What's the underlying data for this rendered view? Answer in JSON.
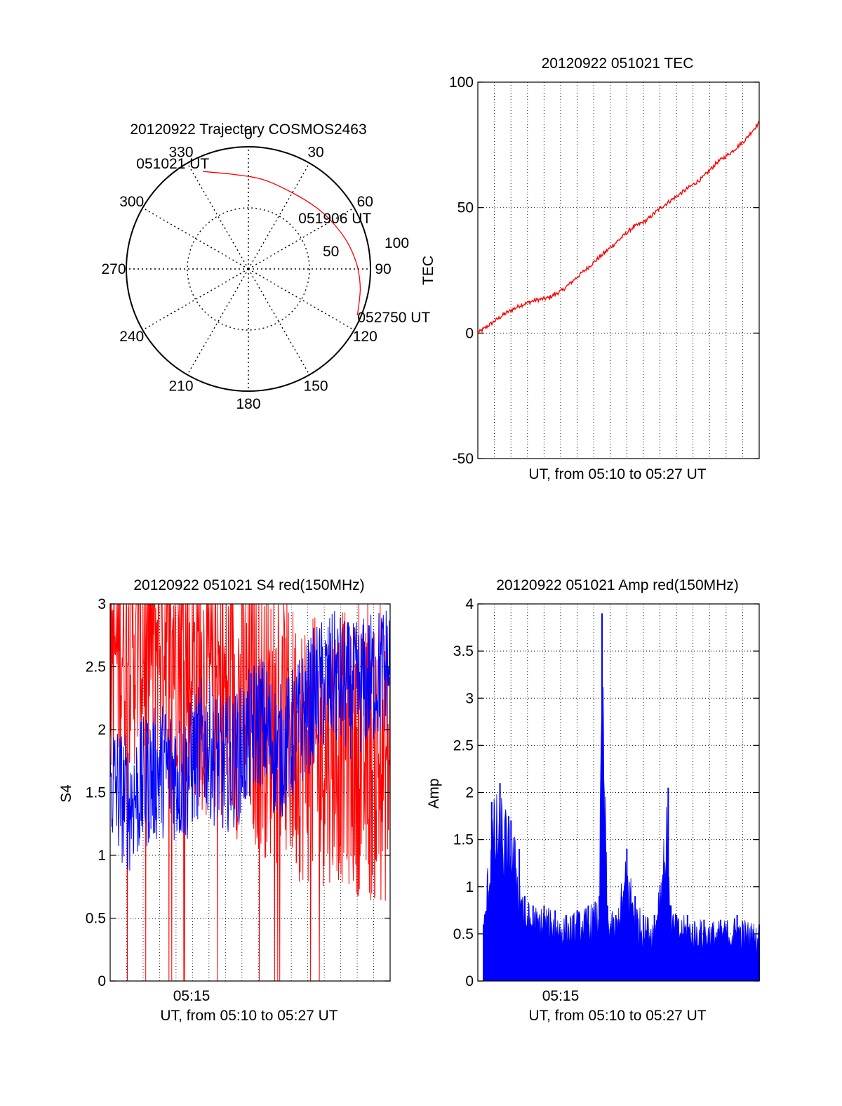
{
  "colors": {
    "red": "#ff0000",
    "blue": "#0000ff",
    "axis": "#000000",
    "grid": "#000000"
  },
  "chart_data": [
    {
      "type": "polar",
      "title": "20120922 Trajectory COSMOS2463",
      "angle_labels": [
        "0",
        "30",
        "60",
        "90",
        "120",
        "150",
        "180",
        "210",
        "240",
        "270",
        "300",
        "330"
      ],
      "radial_labels": [
        "50",
        "100"
      ],
      "trajectory": {
        "color": "red",
        "points": [
          {
            "azimuth": 335,
            "zenith": 88
          },
          {
            "azimuth": 352,
            "zenith": 78
          },
          {
            "azimuth": 10,
            "zenith": 74
          },
          {
            "azimuth": 30,
            "zenith": 72
          },
          {
            "azimuth": 48,
            "zenith": 75
          },
          {
            "azimuth": 62,
            "zenith": 79
          },
          {
            "azimuth": 75,
            "zenith": 84
          },
          {
            "azimuth": 88,
            "zenith": 89
          },
          {
            "azimuth": 100,
            "zenith": 93
          },
          {
            "azimuth": 113,
            "zenith": 97
          }
        ]
      },
      "annotations": [
        {
          "text": "051021 UT",
          "azimuth": 335,
          "zenith": 88
        },
        {
          "text": "051906 UT",
          "azimuth": 50,
          "zenith": 76
        },
        {
          "text": "052750 UT",
          "azimuth": 113,
          "zenith": 97
        }
      ]
    },
    {
      "type": "line",
      "title": "20120922 051021 TEC",
      "xlabel": "UT, from 05:10 to 05:27 UT",
      "ylabel": "TEC",
      "ylim": [
        -50,
        100
      ],
      "yticks": [
        "100",
        "50",
        "0",
        "-50"
      ],
      "xlim": [
        0,
        1
      ],
      "grid": true,
      "series": [
        {
          "color": "red",
          "x": [
            0.0,
            0.05,
            0.1,
            0.15,
            0.2,
            0.25,
            0.3,
            0.35,
            0.4,
            0.45,
            0.5,
            0.55,
            0.6,
            0.65,
            0.7,
            0.75,
            0.8,
            0.85,
            0.9,
            0.95,
            1.0
          ],
          "y": [
            0,
            4,
            8,
            11,
            13,
            14,
            17,
            22,
            27,
            32,
            37,
            42,
            45,
            50,
            54,
            58,
            62,
            68,
            72,
            77,
            84
          ]
        }
      ]
    },
    {
      "type": "line",
      "title": "20120922 051021 S4 red(150MHz)",
      "xlabel": "UT, from 05:10 to 05:27 UT",
      "ylabel": "S4",
      "ylim": [
        0,
        3
      ],
      "yticks": [
        "3",
        "2.5",
        "2",
        "1.5",
        "1",
        "0.5",
        "0"
      ],
      "xtick_labels": [
        "05:15"
      ],
      "grid": true,
      "series": [
        {
          "color": "red",
          "envelope": [
            2.6,
            2.8,
            2.7,
            2.9,
            2.6,
            2.4,
            2.3,
            2.2,
            2.1,
            2.0,
            1.9,
            1.8,
            1.9,
            1.8,
            1.7,
            1.7
          ]
        },
        {
          "color": "blue",
          "envelope": [
            1.6,
            1.4,
            1.6,
            1.7,
            1.6,
            1.9,
            1.7,
            1.8,
            2.1,
            1.8,
            2.0,
            2.3,
            2.4,
            2.3,
            2.4,
            2.5
          ]
        }
      ]
    },
    {
      "type": "bar",
      "title": "20120922 051021 Amp red(150MHz)",
      "xlabel": "UT, from 05:10 to 05:27 UT",
      "ylabel": "Amp",
      "ylim": [
        0,
        4
      ],
      "yticks": [
        "4",
        "3.5",
        "3",
        "2.5",
        "2",
        "1.5",
        "1",
        "0.5",
        "0"
      ],
      "xtick_labels": [
        "05:15"
      ],
      "grid": true,
      "series": [
        {
          "color": "blue",
          "x": [
            0.0,
            0.03,
            0.06,
            0.1,
            0.13,
            0.15,
            0.18,
            0.22,
            0.26,
            0.3,
            0.34,
            0.38,
            0.42,
            0.43,
            0.45,
            0.48,
            0.52,
            0.55,
            0.58,
            0.62,
            0.67,
            0.68,
            0.7,
            0.74,
            0.8,
            0.86,
            0.92,
            1.0
          ],
          "y": [
            0.6,
            1.9,
            2.1,
            1.7,
            1.4,
            0.9,
            0.8,
            0.8,
            0.75,
            0.7,
            0.75,
            0.8,
            0.9,
            3.9,
            0.8,
            0.7,
            1.4,
            0.9,
            0.7,
            0.7,
            2.05,
            0.8,
            0.7,
            0.7,
            0.65,
            0.65,
            0.7,
            0.6
          ]
        }
      ]
    }
  ]
}
